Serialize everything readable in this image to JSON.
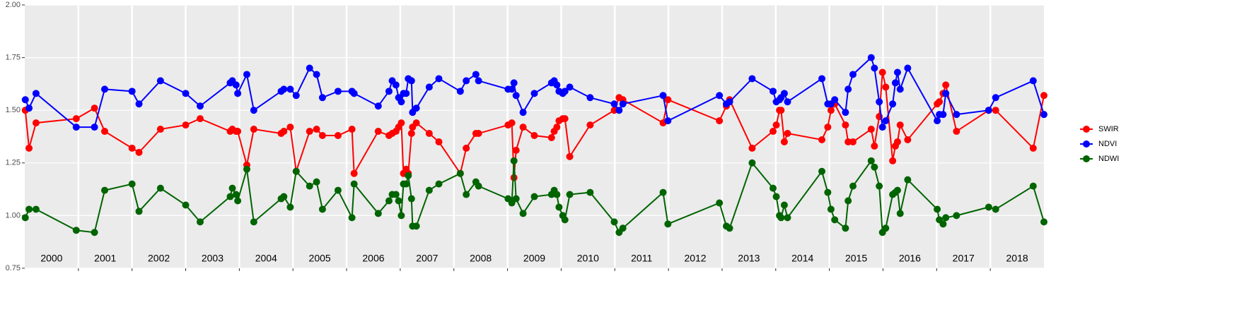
{
  "chart_data": {
    "type": "line",
    "x": [
      2000.01,
      2000.08,
      2000.21,
      2000.96,
      2001.3,
      2001.49,
      2002.0,
      2002.13,
      2002.53,
      2003.0,
      2003.27,
      2003.83,
      2003.87,
      2003.94,
      2003.97,
      2004.14,
      2004.27,
      2004.78,
      2004.83,
      2004.95,
      2005.06,
      2005.31,
      2005.44,
      2005.55,
      2005.84,
      2006.1,
      2006.14,
      2006.59,
      2006.79,
      2006.85,
      2006.92,
      2006.97,
      2007.02,
      2007.06,
      2007.11,
      2007.15,
      2007.21,
      2007.23,
      2007.3,
      2007.54,
      2007.72,
      2008.12,
      2008.23,
      2008.41,
      2008.46,
      2009.01,
      2009.08,
      2009.12,
      2009.16,
      2009.29,
      2009.5,
      2009.82,
      2009.87,
      2009.92,
      2009.96,
      2010.03,
      2010.07,
      2010.16,
      2010.54,
      2010.99,
      2011.08,
      2011.15,
      2011.9,
      2011.99,
      2012.95,
      2013.08,
      2013.14,
      2013.56,
      2013.95,
      2014.01,
      2014.07,
      2014.1,
      2014.16,
      2014.22,
      2014.86,
      2014.97,
      2015.03,
      2015.1,
      2015.3,
      2015.35,
      2015.44,
      2015.78,
      2015.84,
      2015.93,
      2015.99,
      2016.05,
      2016.18,
      2016.23,
      2016.27,
      2016.32,
      2016.46,
      2017.01,
      2017.05,
      2017.12,
      2017.17,
      2017.37,
      2017.97,
      2018.1,
      2018.8,
      2019.0
    ],
    "series": [
      {
        "name": "SWIR",
        "color": "#ff0000",
        "values": [
          1.5,
          1.32,
          1.44,
          1.46,
          1.51,
          1.4,
          1.32,
          1.3,
          1.41,
          1.43,
          1.46,
          1.4,
          1.41,
          1.4,
          1.4,
          1.24,
          1.41,
          1.39,
          1.4,
          1.42,
          1.21,
          1.4,
          1.41,
          1.38,
          1.38,
          1.41,
          1.2,
          1.4,
          1.38,
          1.39,
          1.4,
          1.42,
          1.44,
          1.2,
          1.22,
          1.2,
          1.39,
          1.42,
          1.44,
          1.39,
          1.35,
          1.2,
          1.32,
          1.39,
          1.39,
          1.43,
          1.44,
          1.18,
          1.31,
          1.42,
          1.38,
          1.37,
          1.4,
          1.42,
          1.45,
          1.46,
          1.46,
          1.28,
          1.43,
          1.5,
          1.56,
          1.55,
          1.44,
          1.55,
          1.45,
          1.52,
          1.55,
          1.32,
          1.4,
          1.43,
          1.5,
          1.5,
          1.35,
          1.39,
          1.36,
          1.42,
          1.5,
          1.53,
          1.43,
          1.35,
          1.35,
          1.41,
          1.33,
          1.47,
          1.68,
          1.61,
          1.26,
          1.33,
          1.35,
          1.43,
          1.36,
          1.53,
          1.54,
          1.58,
          1.62,
          1.4,
          1.5,
          1.5,
          1.32,
          1.57
        ]
      },
      {
        "name": "NDVI",
        "color": "#0000ff",
        "values": [
          1.55,
          1.51,
          1.58,
          1.42,
          1.42,
          1.6,
          1.59,
          1.53,
          1.64,
          1.58,
          1.52,
          1.63,
          1.64,
          1.62,
          1.58,
          1.67,
          1.5,
          1.59,
          1.6,
          1.6,
          1.57,
          1.7,
          1.67,
          1.56,
          1.59,
          1.59,
          1.58,
          1.52,
          1.59,
          1.64,
          1.62,
          1.56,
          1.54,
          1.58,
          1.58,
          1.65,
          1.64,
          1.49,
          1.51,
          1.61,
          1.65,
          1.59,
          1.64,
          1.67,
          1.64,
          1.6,
          1.6,
          1.63,
          1.57,
          1.49,
          1.58,
          1.63,
          1.64,
          1.62,
          1.59,
          1.58,
          1.59,
          1.61,
          1.56,
          1.53,
          1.5,
          1.53,
          1.57,
          1.45,
          1.57,
          1.53,
          1.54,
          1.65,
          1.59,
          1.54,
          1.55,
          1.56,
          1.58,
          1.54,
          1.65,
          1.53,
          1.53,
          1.55,
          1.49,
          1.6,
          1.67,
          1.75,
          1.7,
          1.54,
          1.42,
          1.45,
          1.53,
          1.63,
          1.68,
          1.6,
          1.7,
          1.45,
          1.48,
          1.48,
          1.58,
          1.48,
          1.5,
          1.56,
          1.64,
          1.48
        ]
      },
      {
        "name": "NDWI",
        "color": "#006400",
        "values": [
          0.99,
          1.03,
          1.03,
          0.93,
          0.92,
          1.12,
          1.15,
          1.02,
          1.13,
          1.05,
          0.97,
          1.09,
          1.13,
          1.1,
          1.07,
          1.22,
          0.97,
          1.08,
          1.09,
          1.04,
          1.21,
          1.14,
          1.16,
          1.03,
          1.12,
          0.99,
          1.15,
          1.01,
          1.07,
          1.1,
          1.1,
          1.07,
          1.0,
          1.15,
          1.15,
          1.19,
          1.08,
          0.95,
          0.95,
          1.12,
          1.15,
          1.2,
          1.1,
          1.16,
          1.14,
          1.08,
          1.06,
          1.26,
          1.08,
          1.01,
          1.09,
          1.1,
          1.12,
          1.1,
          1.04,
          1.0,
          0.98,
          1.1,
          1.11,
          0.97,
          0.92,
          0.94,
          1.11,
          0.96,
          1.06,
          0.95,
          0.94,
          1.25,
          1.13,
          1.09,
          1.0,
          0.99,
          1.05,
          0.99,
          1.21,
          1.11,
          1.03,
          0.98,
          0.94,
          1.07,
          1.14,
          1.26,
          1.23,
          1.14,
          0.92,
          0.94,
          1.1,
          1.11,
          1.12,
          1.01,
          1.17,
          1.03,
          0.98,
          0.96,
          0.99,
          1.0,
          1.04,
          1.03,
          1.14,
          0.97
        ]
      }
    ],
    "categories": [
      "2000",
      "2001",
      "2002",
      "2003",
      "2004",
      "2005",
      "2006",
      "2007",
      "2008",
      "2009",
      "2010",
      "2011",
      "2012",
      "2013",
      "2014",
      "2015",
      "2016",
      "2017",
      "2018"
    ],
    "xlim": [
      2000,
      2019
    ],
    "ylim": [
      0.75,
      2.0
    ],
    "yticks": [
      {
        "value": 0.75,
        "label": "0.75"
      },
      {
        "value": 1.0,
        "label": "1.00"
      },
      {
        "value": 1.25,
        "label": "1.25"
      },
      {
        "value": 1.5,
        "label": "1.50"
      },
      {
        "value": 1.75,
        "label": "1.75"
      },
      {
        "value": 2.0,
        "label": "2.00"
      }
    ],
    "grid": true,
    "legend": "right"
  }
}
